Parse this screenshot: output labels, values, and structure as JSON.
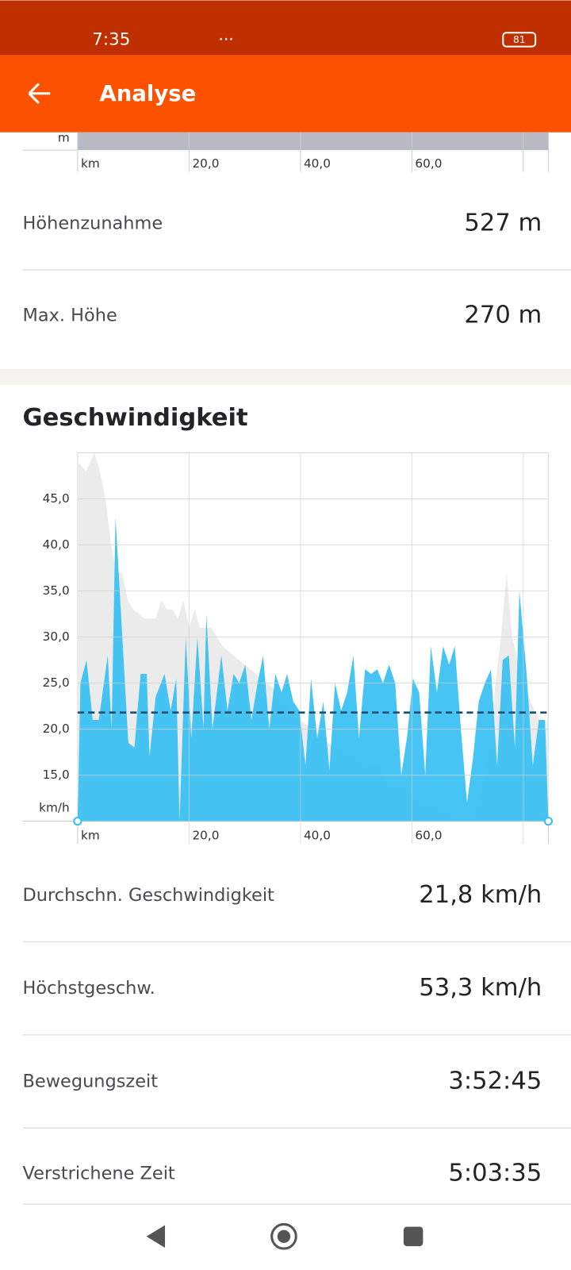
{
  "status_bar": {
    "time": "7:35",
    "battery": "81"
  },
  "header": {
    "title": "Analyse"
  },
  "elevation_chart": {
    "y_label": "m",
    "x_label": "km",
    "xlim": [
      0,
      84.5
    ],
    "xticks": [
      {
        "value": 20,
        "label": "20,0"
      },
      {
        "value": 40,
        "label": "40,0"
      },
      {
        "value": 60,
        "label": "60,0"
      },
      {
        "value": 80,
        "label": null
      }
    ]
  },
  "elevation_stats": [
    {
      "label": "Höhenzunahme",
      "value": "527 m"
    },
    {
      "label": "Max. Höhe",
      "value": "270 m"
    }
  ],
  "chart_data": {
    "type": "area",
    "title": "Geschwindigkeit",
    "x_label": "km",
    "y_label": "km/h",
    "xlim": [
      0,
      84.5
    ],
    "ylim": [
      10,
      50
    ],
    "xticks": [
      {
        "value": 20,
        "label": "20,0"
      },
      {
        "value": 40,
        "label": "40,0"
      },
      {
        "value": 60,
        "label": "60,0"
      },
      {
        "value": 80,
        "label": null
      }
    ],
    "yticks": [
      {
        "value": 15,
        "label": "15,0"
      },
      {
        "value": 20,
        "label": "20,0"
      },
      {
        "value": 25,
        "label": "25,0"
      },
      {
        "value": 30,
        "label": "30,0"
      },
      {
        "value": 35,
        "label": "35,0"
      },
      {
        "value": 40,
        "label": "40,0"
      },
      {
        "value": 45,
        "label": "45,0"
      }
    ],
    "grid": true,
    "average": 21.8,
    "series": [
      {
        "color": "#ebebeb",
        "x": [
          0,
          1.5,
          3,
          4,
          5,
          6,
          7,
          8,
          9,
          10,
          12,
          14,
          15,
          16,
          17,
          18,
          19,
          20,
          21,
          22,
          24,
          26,
          28,
          30,
          32,
          34,
          36,
          38,
          40,
          42,
          44,
          46,
          48,
          50,
          52,
          54,
          56,
          58,
          60,
          62,
          64,
          66,
          68,
          70,
          72,
          74,
          75,
          76,
          77,
          78,
          80,
          82,
          84,
          84.5
        ],
        "values": [
          49,
          48,
          50,
          48,
          45,
          40,
          37,
          37,
          34,
          33,
          32,
          32,
          34,
          33,
          33,
          32,
          34,
          31,
          33,
          31,
          31,
          29,
          28,
          27,
          26,
          25,
          24,
          22,
          21,
          20,
          19,
          18,
          17.5,
          17,
          16,
          16,
          14,
          14,
          13,
          12,
          12,
          11,
          10.5,
          10,
          12,
          18,
          25,
          30,
          37,
          30,
          25,
          22,
          20,
          22
        ]
      },
      {
        "color": "#36bff2",
        "x": [
          0,
          0.5,
          1.6,
          2.7,
          3.8,
          5.4,
          6.1,
          6.8,
          9.1,
          10.2,
          11.3,
          12.4,
          12.9,
          14,
          15.6,
          16.7,
          17.7,
          18.3,
          19.4,
          20.4,
          21.5,
          22.6,
          23.1,
          24.2,
          25.8,
          26.9,
          28,
          29,
          30.1,
          31.2,
          32.3,
          33.3,
          34.4,
          35.5,
          36.6,
          37.6,
          38.7,
          39.8,
          40.9,
          41.9,
          43,
          44.1,
          45.2,
          46.2,
          47.3,
          48.4,
          49.5,
          50.5,
          51.6,
          52.7,
          53.8,
          54.8,
          55.9,
          57,
          58.1,
          59.1,
          60.2,
          61.3,
          62.4,
          63.4,
          64.5,
          65.6,
          66.7,
          67.7,
          68.8,
          69.9,
          71,
          72,
          73.1,
          74.2,
          75.3,
          76.3,
          77.4,
          78.5,
          79.3,
          80.6,
          81.7,
          82.8,
          83.9,
          84.5
        ],
        "values": [
          10,
          25,
          27.5,
          21,
          21,
          28,
          20,
          43,
          18.5,
          18,
          26,
          26,
          17,
          23.5,
          26,
          22,
          25.5,
          10,
          30,
          19,
          30,
          20,
          32.5,
          20,
          28,
          22,
          26,
          25,
          27,
          21,
          25,
          28,
          20,
          26,
          24,
          26,
          23,
          22,
          16,
          25.5,
          19,
          23,
          15.5,
          25,
          22,
          24,
          28,
          19,
          26.5,
          26,
          26.5,
          25,
          27,
          25,
          15,
          19,
          25.5,
          24,
          15,
          29,
          24,
          29,
          27,
          29,
          20,
          12,
          17,
          23,
          25,
          26.5,
          16,
          27.5,
          28,
          18,
          35,
          26,
          16,
          21,
          21,
          10
        ]
      }
    ]
  },
  "speed_stats": [
    {
      "label": "Durchschn. Geschwindigkeit",
      "value": "21,8 km/h"
    },
    {
      "label": "Höchstgeschw.",
      "value": "53,3 km/h"
    },
    {
      "label": "Bewegungszeit",
      "value": "3:52:45"
    },
    {
      "label": "Verstrichene Zeit",
      "value": "5:03:35"
    }
  ]
}
